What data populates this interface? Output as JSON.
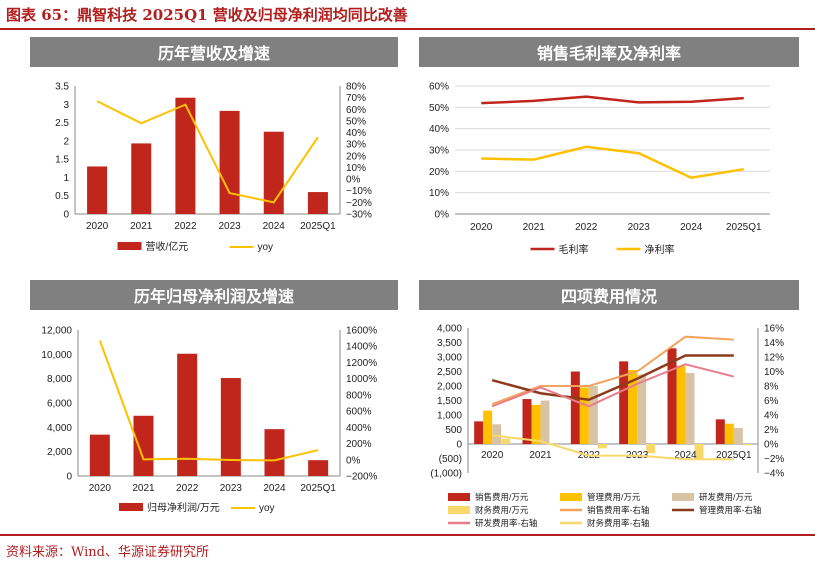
{
  "figure_title": "图表 65：鼎智科技 2025Q1 营收及归母净利润均同比改善",
  "source": "资料来源：Wind、华源证券研究所",
  "colors": {
    "red": "#c0261c",
    "yellow": "#ffc000",
    "tan": "#d9c3a5",
    "darkred": "#8c3a1a",
    "pink": "#e87d8a",
    "orange": "#f4a35b",
    "lightyellow": "#f6d86b",
    "header": "#808080"
  },
  "chart_data": [
    {
      "type": "bar",
      "title": "历年营收及增速",
      "categories": [
        "2020",
        "2021",
        "2022",
        "2023",
        "2024",
        "2025Q1"
      ],
      "series": [
        {
          "name": "营收/亿元",
          "type": "bar",
          "axis": "left",
          "values": [
            1.3,
            1.93,
            3.18,
            2.82,
            2.25,
            0.6
          ]
        },
        {
          "name": "yoy",
          "type": "line",
          "axis": "right",
          "values": [
            0.67,
            0.48,
            0.64,
            -0.12,
            -0.2,
            0.36
          ]
        }
      ],
      "y_left": {
        "min": 0,
        "max": 3.5,
        "ticks": [
          "0",
          "0.5",
          "1",
          "1.5",
          "2",
          "2.5",
          "3",
          "3.5"
        ]
      },
      "y_right": {
        "min": -0.3,
        "max": 0.8,
        "ticks": [
          "−30%",
          "−20%",
          "−10%",
          "0%",
          "10%",
          "20%",
          "30%",
          "40%",
          "50%",
          "60%",
          "70%",
          "80%"
        ]
      },
      "legend": "bottom"
    },
    {
      "type": "line",
      "title": "销售毛利率及净利率",
      "categories": [
        "2020",
        "2021",
        "2022",
        "2023",
        "2024",
        "2025Q1"
      ],
      "series": [
        {
          "name": "毛利率",
          "values": [
            0.52,
            0.53,
            0.55,
            0.523,
            0.526,
            0.543
          ]
        },
        {
          "name": "净利率",
          "values": [
            0.26,
            0.255,
            0.315,
            0.285,
            0.17,
            0.21
          ]
        }
      ],
      "y_left": {
        "min": 0,
        "max": 0.6,
        "ticks": [
          "0%",
          "10%",
          "20%",
          "30%",
          "40%",
          "50%",
          "60%"
        ]
      },
      "legend": "bottom"
    },
    {
      "type": "bar",
      "title": "历年归母净利润及增速",
      "categories": [
        "2020",
        "2021",
        "2022",
        "2023",
        "2024",
        "2025Q1"
      ],
      "series": [
        {
          "name": "归母净利润/万元",
          "type": "bar",
          "axis": "left",
          "values": [
            3400,
            4950,
            10050,
            8050,
            3850,
            1300
          ]
        },
        {
          "name": "yoy",
          "type": "line",
          "axis": "right",
          "values": [
            14.7,
            0.05,
            0.12,
            -0.03,
            -0.07,
            1.2
          ]
        }
      ],
      "y_left": {
        "min": 0,
        "max": 12000,
        "ticks": [
          "0",
          "2,000",
          "4,000",
          "6,000",
          "8,000",
          "10,000",
          "12,000"
        ]
      },
      "y_right": {
        "min": -2,
        "max": 16,
        "ticks": [
          "−200%",
          "0%",
          "200%",
          "400%",
          "600%",
          "800%",
          "1000%",
          "1200%",
          "1400%",
          "1600%"
        ]
      },
      "legend": "bottom"
    },
    {
      "type": "bar",
      "title": "四项费用情况",
      "categories": [
        "2020",
        "2021",
        "2022",
        "2023",
        "2024",
        "2025Q1"
      ],
      "series": [
        {
          "name": "销售费用/万元",
          "type": "bar",
          "axis": "left",
          "values": [
            780,
            1550,
            2500,
            2850,
            3300,
            850
          ]
        },
        {
          "name": "管理费用/万元",
          "type": "bar",
          "axis": "left",
          "values": [
            1150,
            1350,
            1950,
            2550,
            2700,
            700
          ]
        },
        {
          "name": "研发费用/万元",
          "type": "bar",
          "axis": "left",
          "values": [
            680,
            1500,
            2000,
            2400,
            2450,
            550
          ]
        },
        {
          "name": "财务费用/万元",
          "type": "bar",
          "axis": "left",
          "values": [
            180,
            -30,
            -150,
            -320,
            -520,
            -40
          ]
        },
        {
          "name": "销售费用率-右轴",
          "type": "line",
          "axis": "right",
          "values": [
            0.055,
            0.08,
            0.08,
            0.1,
            0.148,
            0.144
          ]
        },
        {
          "name": "管理费用率-右轴",
          "type": "line",
          "axis": "right",
          "values": [
            0.088,
            0.07,
            0.061,
            0.09,
            0.122,
            0.122
          ]
        },
        {
          "name": "研发费用率-右轴",
          "type": "line",
          "axis": "right",
          "values": [
            0.052,
            0.078,
            0.052,
            0.083,
            0.11,
            0.093
          ]
        },
        {
          "name": "财务费用率-右轴",
          "type": "line",
          "axis": "right",
          "values": [
            0.012,
            0.004,
            -0.016,
            -0.016,
            -0.021,
            -0.021
          ]
        }
      ],
      "y_left": {
        "min": -1000,
        "max": 4000,
        "ticks": [
          "(1,000)",
          "(500)",
          "0",
          "500",
          "1,000",
          "1,500",
          "2,000",
          "2,500",
          "3,000",
          "3,500",
          "4,000"
        ]
      },
      "y_right": {
        "min": -0.04,
        "max": 0.16,
        "ticks": [
          "−4%",
          "−2%",
          "0%",
          "2%",
          "4%",
          "6%",
          "8%",
          "10%",
          "12%",
          "14%",
          "16%"
        ]
      },
      "legend": "bottom"
    }
  ]
}
